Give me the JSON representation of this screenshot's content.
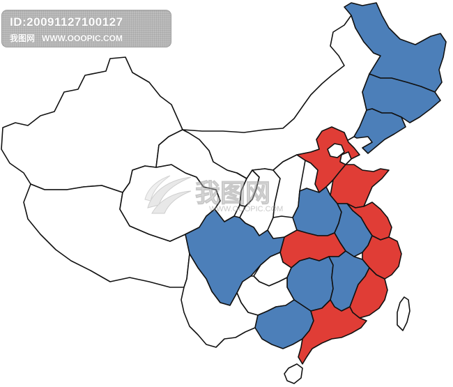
{
  "watermark": {
    "id_text": "ID:20091127100127",
    "site_cn": "我图网",
    "site_url": "WWW.OOOPIC.COM"
  },
  "center_watermark": {
    "logo_text": "我图网",
    "url_text": "WWW.OOOPIC.COM"
  },
  "colors": {
    "blue": "#4c7fb9",
    "red": "#e03d36",
    "white": "#ffffff",
    "border": "#111111"
  },
  "provinces": [
    {
      "key": "heilongjiang",
      "fill": "blue"
    },
    {
      "key": "jilin",
      "fill": "blue"
    },
    {
      "key": "liaoning",
      "fill": "blue"
    },
    {
      "key": "inner-mongolia",
      "fill": "white"
    },
    {
      "key": "xinjiang",
      "fill": "white"
    },
    {
      "key": "tibet",
      "fill": "white"
    },
    {
      "key": "qinghai",
      "fill": "white"
    },
    {
      "key": "gansu",
      "fill": "white"
    },
    {
      "key": "ningxia",
      "fill": "white"
    },
    {
      "key": "shaanxi",
      "fill": "white"
    },
    {
      "key": "shanxi",
      "fill": "white"
    },
    {
      "key": "hebei",
      "fill": "red"
    },
    {
      "key": "beijing",
      "fill": "white"
    },
    {
      "key": "tianjin",
      "fill": "white"
    },
    {
      "key": "shandong",
      "fill": "red"
    },
    {
      "key": "henan",
      "fill": "blue"
    },
    {
      "key": "jiangsu",
      "fill": "red"
    },
    {
      "key": "anhui",
      "fill": "blue"
    },
    {
      "key": "hubei",
      "fill": "red"
    },
    {
      "key": "zhejiang",
      "fill": "red"
    },
    {
      "key": "sichuan",
      "fill": "blue"
    },
    {
      "key": "chongqing",
      "fill": "white"
    },
    {
      "key": "hunan",
      "fill": "blue"
    },
    {
      "key": "jiangxi",
      "fill": "blue"
    },
    {
      "key": "fujian",
      "fill": "red"
    },
    {
      "key": "guizhou",
      "fill": "white"
    },
    {
      "key": "yunnan",
      "fill": "white"
    },
    {
      "key": "guangxi",
      "fill": "blue"
    },
    {
      "key": "guangdong",
      "fill": "red"
    },
    {
      "key": "taiwan",
      "fill": "white"
    },
    {
      "key": "hainan",
      "fill": "white"
    }
  ]
}
